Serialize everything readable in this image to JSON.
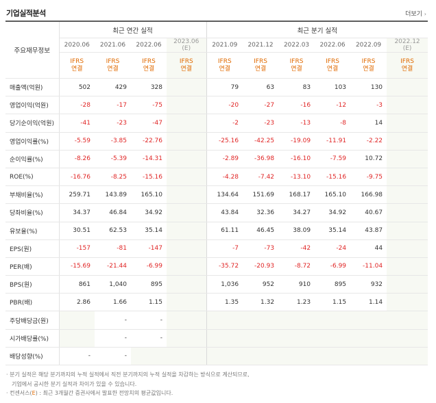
{
  "header": {
    "title": "기업실적분석",
    "more_label": "더보기"
  },
  "groups": {
    "annual": "최근 연간 실적",
    "quarterly": "최근 분기 실적"
  },
  "row_header": "주요재무정보",
  "periods": {
    "annual": [
      "2020.06",
      "2021.06",
      "2022.06",
      "2023.06"
    ],
    "annual_est_mark": "(E)",
    "quarterly": [
      "2021.09",
      "2021.12",
      "2022.03",
      "2022.06",
      "2022.09",
      "2022.12"
    ],
    "quarterly_est_mark": "(E)"
  },
  "standard": {
    "line1": "IFRS",
    "line2": "연결"
  },
  "rows": [
    {
      "label": "매출액(억원)",
      "values": [
        "502",
        "429",
        "328",
        "",
        "79",
        "63",
        "83",
        "103",
        "130",
        ""
      ]
    },
    {
      "label": "영업이익(억원)",
      "values": [
        "-28",
        "-17",
        "-75",
        "",
        "-20",
        "-27",
        "-16",
        "-12",
        "-3",
        ""
      ]
    },
    {
      "label": "당기순이익(억원)",
      "values": [
        "-41",
        "-23",
        "-47",
        "",
        "-2",
        "-23",
        "-13",
        "-8",
        "14",
        ""
      ]
    },
    {
      "label": "영업이익률(%)",
      "values": [
        "-5.59",
        "-3.85",
        "-22.76",
        "",
        "-25.16",
        "-42.25",
        "-19.09",
        "-11.91",
        "-2.22",
        ""
      ]
    },
    {
      "label": "순이익률(%)",
      "values": [
        "-8.26",
        "-5.39",
        "-14.31",
        "",
        "-2.89",
        "-36.98",
        "-16.10",
        "-7.59",
        "10.72",
        ""
      ]
    },
    {
      "label": "ROE(%)",
      "values": [
        "-16.76",
        "-8.25",
        "-15.16",
        "",
        "-4.28",
        "-7.42",
        "-13.10",
        "-15.16",
        "-9.75",
        ""
      ]
    },
    {
      "label": "부채비율(%)",
      "values": [
        "259.71",
        "143.89",
        "165.10",
        "",
        "134.64",
        "151.69",
        "168.17",
        "165.10",
        "166.98",
        ""
      ]
    },
    {
      "label": "당좌비율(%)",
      "values": [
        "34.37",
        "46.84",
        "34.92",
        "",
        "43.84",
        "32.36",
        "34.27",
        "34.92",
        "40.67",
        ""
      ]
    },
    {
      "label": "유보율(%)",
      "values": [
        "30.51",
        "62.53",
        "35.14",
        "",
        "61.11",
        "46.45",
        "38.09",
        "35.14",
        "43.87",
        ""
      ]
    },
    {
      "label": "EPS(원)",
      "values": [
        "-157",
        "-81",
        "-147",
        "",
        "-7",
        "-73",
        "-42",
        "-24",
        "44",
        ""
      ]
    },
    {
      "label": "PER(배)",
      "values": [
        "-15.69",
        "-21.44",
        "-6.99",
        "",
        "-35.72",
        "-20.93",
        "-8.72",
        "-6.99",
        "-11.04",
        ""
      ]
    },
    {
      "label": "BPS(원)",
      "values": [
        "861",
        "1,040",
        "895",
        "",
        "1,036",
        "952",
        "910",
        "895",
        "932",
        ""
      ]
    },
    {
      "label": "PBR(배)",
      "values": [
        "2.86",
        "1.66",
        "1.15",
        "",
        "1.35",
        "1.32",
        "1.23",
        "1.15",
        "1.14",
        ""
      ]
    },
    {
      "label": "주당배당금(원)",
      "values": [
        "",
        "-",
        "-",
        "",
        "",
        "",
        "",
        "",
        "",
        ""
      ]
    },
    {
      "label": "시가배당률(%)",
      "values": [
        "",
        "-",
        "-",
        "",
        "",
        "",
        "",
        "",
        "",
        ""
      ]
    },
    {
      "label": "배당성향(%)",
      "values": [
        "-",
        "-",
        "",
        "",
        "",
        "",
        "",
        "",
        "",
        ""
      ]
    }
  ],
  "notes": {
    "line1": "· 분기 실적은 해당 분기까지의 누적 실적에서 직전 분기까지의 누적 실적을 차감하는 방식으로 계산되므로,",
    "line2": "기업에서 공시한 분기 실적과 차이가 있을 수 있습니다.",
    "line3_prefix": "· 컨센서스(",
    "line3_mark": "E",
    "line3_suffix": ") : 최근 3개월간 증권사에서 발표한 전망치의 평균값입니다."
  },
  "colors": {
    "negative": "#e02424",
    "standard": "#e06a00",
    "estimate": "#999999",
    "shade": "#f7f9f3"
  }
}
